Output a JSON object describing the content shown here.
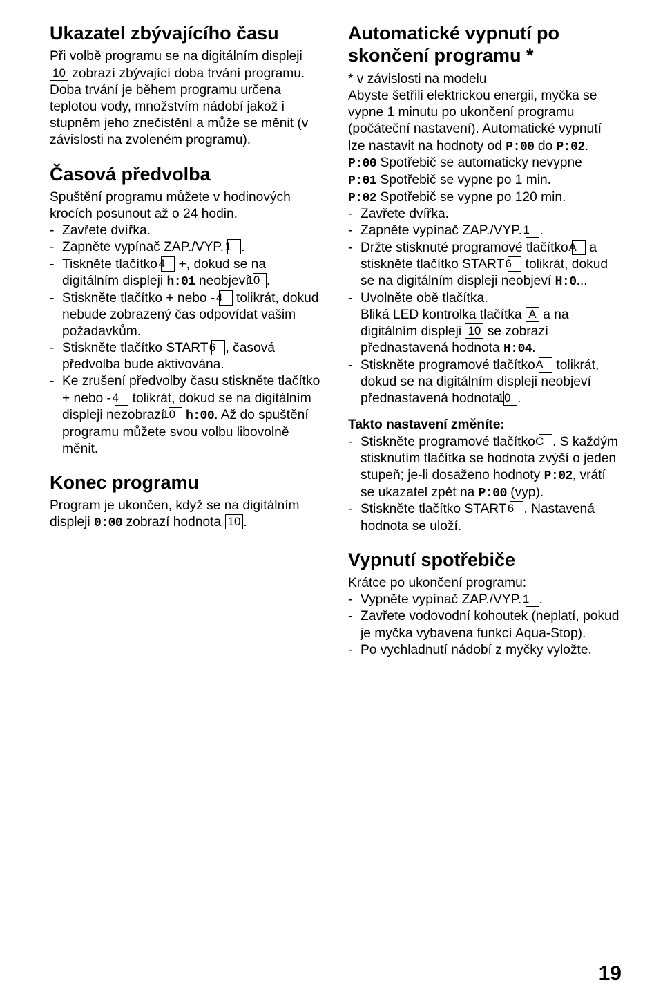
{
  "pageNumber": "19",
  "left": {
    "h1": "Ukazatel zbývajícího času",
    "p1a": "Při volbě programu se na digitálním displeji ",
    "p1b": " zobrazí zbývající doba trvání programu. Doba trvání je během programu určena teplotou vody, množstvím nádobí jakož i stupněm jeho znečistění a může se měnit (v závislosti na zvoleném programu).",
    "h2": "Časová předvolba",
    "p2": "Spuštění programu můžete v hodinových krocích posunout až o 24 hodin.",
    "li1": "Zavřete dvířka.",
    "li2a": "Zapněte vypínač ZAP./VYP. ",
    "li2b": ".",
    "li3a": "Tiskněte tlačítko ",
    "li3b": " +, dokud se na digitálním displeji ",
    "li3c": " neobjeví ",
    "li3d": ".",
    "li4a": "Stiskněte tlačítko + nebo - ",
    "li4b": " tolikrát, dokud nebude zobrazený čas odpovídat vašim požadavkům.",
    "li5a": "Stiskněte tlačítko START ",
    "li5b": ", časová předvolba bude aktivována.",
    "li6a": "Ke zrušení předvolby času stiskněte tlačítko + nebo - ",
    "li6b": " tolikrát, dokud se na digitálním displeji nezobrazí ",
    "li6c": " ",
    "li6d": ". Až do spuštění programu můžete svou volbu libovolně měnit.",
    "h3": "Konec programu",
    "p3a": "Program je ukončen, když se na digitálním displeji ",
    "p3b": " zobrazí hodnota ",
    "p3c": ".",
    "box10": "10",
    "box1": "1",
    "box4": "4",
    "box6": "6",
    "seg_h01": "h:01",
    "seg_h00": "h:00",
    "seg_000": "0:00"
  },
  "right": {
    "h1": "Automatické vypnutí po skončení programu *",
    "p1a": "* v závislosti na modelu",
    "p1b": "Abyste šetřili elektrickou energii, myčka se vypne 1 minutu po ukončení programu (počáteční nastavení). Automatické vypnutí lze nastavit na hodnoty od ",
    "p1c": " do ",
    "p1d": ".",
    "p2a": " Spotřebič se automaticky nevypne",
    "p2b": " Spotřebič se vypne po 1 min.",
    "p2c": " Spotřebič se vypne po 120 min.",
    "li1": "Zavřete dvířka.",
    "li2a": "Zapněte vypínač ZAP./VYP. ",
    "li2b": ".",
    "li3a": "Držte stisknuté programové tlačítko ",
    "li3b": " a stiskněte tlačítko START ",
    "li3c": " tolikrát, dokud se na digitálním displeji neobjeví ",
    "li3d": "...",
    "li4a": "Uvolněte obě tlačítka.",
    "li4b": "Bliká LED kontrolka tlačítka ",
    "li4c": " a na digitálním displeji ",
    "li4d": " se zobrazí přednastavená hodnota ",
    "li4e": ".",
    "li5a": "Stiskněte programové tlačítko ",
    "li5b": " tolikrát, dokud se na digitálním displeji neobjeví přednastavená hodnota ",
    "li5c": ".",
    "p3": "Takto nastavení změníte:",
    "li6a": "Stiskněte programové tlačítko ",
    "li6b": ". S každým stisknutím tlačítka se hodnota zvýší o jeden stupeň; je-li dosaženo hodnoty ",
    "li6c": ", vrátí se ukazatel zpět na ",
    "li6d": " (vyp).",
    "li7a": "Stiskněte tlačítko START ",
    "li7b": ". Nastavená hodnota se uloží.",
    "h2": "Vypnutí spotřebiče",
    "p4": "Krátce po ukončení programu:",
    "li8a": "Vypněte vypínač ZAP./VYP. ",
    "li8b": ".",
    "li9": "Zavřete vodovodní kohoutek (neplatí, pokud je myčka vybavena funkcí Aqua-Stop).",
    "li10": "Po vychladnutí nádobí z myčky vyložte.",
    "boxA": "A",
    "boxC": "C",
    "box1": "1",
    "box6": "6",
    "box10": "10",
    "seg_P00": "P:00",
    "seg_P01": "P:01",
    "seg_P02": "P:02",
    "seg_H0": "H:0",
    "seg_H04": "H:04"
  }
}
